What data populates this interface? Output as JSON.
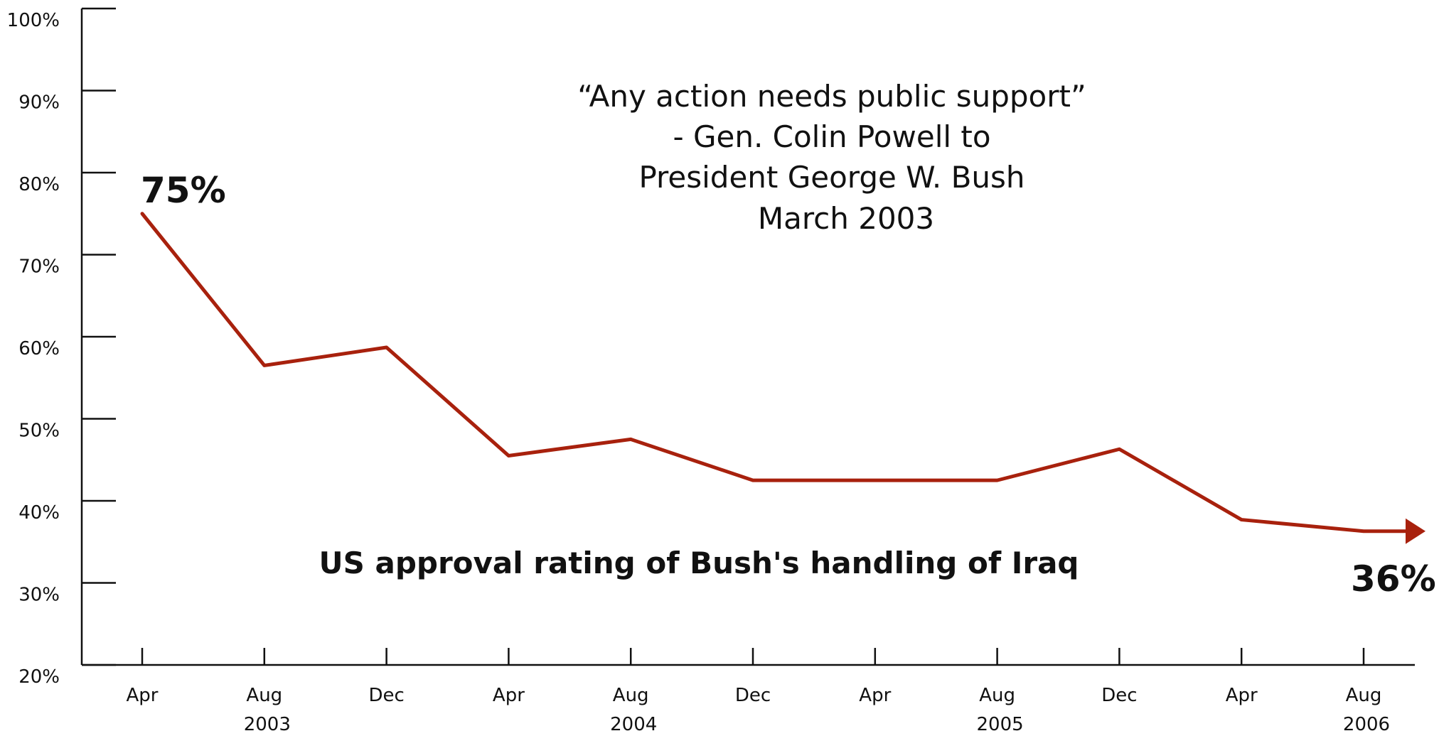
{
  "chart_data": {
    "type": "line",
    "title": "US approval rating of Bush's handling of Iraq",
    "x": [
      "Apr 2003",
      "Aug 2003",
      "Dec 2003",
      "Apr 2004",
      "Aug 2004",
      "Dec 2004",
      "Apr 2005",
      "Aug 2005",
      "Dec 2005",
      "Apr 2006",
      "Aug 2006"
    ],
    "x_tick_labels": [
      "Apr",
      "Aug",
      "Dec",
      "Apr",
      "Aug",
      "Dec",
      "Apr",
      "Aug",
      "Dec",
      "Apr",
      "Aug"
    ],
    "year_labels": [
      {
        "text": "2003",
        "at": 1
      },
      {
        "text": "2004",
        "at": 4
      },
      {
        "text": "2005",
        "at": 7
      },
      {
        "text": "2006",
        "at": 10
      }
    ],
    "series": [
      {
        "values": [
          75,
          56.5,
          58.7,
          45.5,
          47.5,
          42.5,
          42.5,
          42.5,
          46.3,
          37.7,
          36.3
        ],
        "color": "#a8210d"
      }
    ],
    "ylim": [
      20,
      100
    ],
    "y_ticks": [
      20,
      30,
      40,
      50,
      60,
      70,
      80,
      90,
      100
    ],
    "y_tick_labels": [
      "20%",
      "30%",
      "40%",
      "50%",
      "60%",
      "70%",
      "80%",
      "90%",
      "100%"
    ],
    "grid": false,
    "annotations": {
      "start_label": "75%",
      "end_label": "36%",
      "quote_lines": [
        "“Any action needs public support”",
        "- Gen. Colin Powell to",
        "President George W. Bush",
        "March 2003"
      ]
    },
    "arrow_end": true,
    "axis_color": "#111111"
  }
}
